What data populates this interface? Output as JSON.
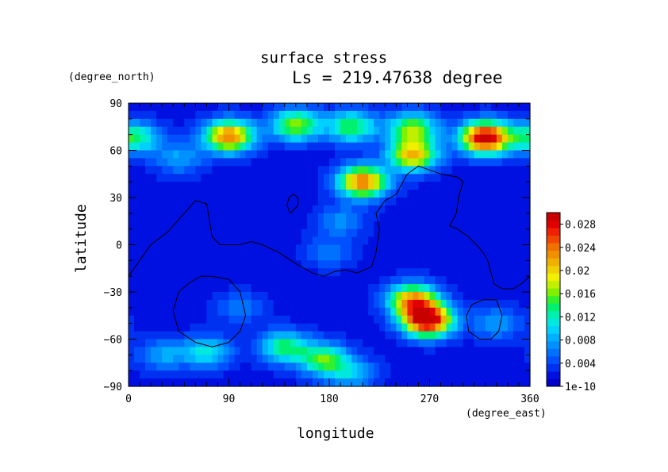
{
  "chart_data": {
    "type": "heatmap",
    "title": "surface stress",
    "subtitle": "Ls = 219.47638 degree",
    "xlabel": "longitude",
    "ylabel": "latitude",
    "x_unit": "(degree_east)",
    "y_unit": "(degree_north)",
    "xlim": [
      0,
      360
    ],
    "ylim": [
      -90,
      90
    ],
    "xticks": [
      "0",
      "90",
      "180",
      "270",
      "360"
    ],
    "yticks": [
      "90",
      "60",
      "30",
      "0",
      "−30",
      "−60",
      "−90"
    ],
    "colorbar": {
      "ticks": [
        "1e-10",
        "0.004",
        "0.008",
        "0.012",
        "0.016",
        "0.02",
        "0.024",
        "0.028"
      ],
      "range": [
        0,
        0.03
      ],
      "colors": [
        "#0000c8",
        "#0010e0",
        "#0030f0",
        "#0050ff",
        "#0070ff",
        "#0090ff",
        "#00b0ff",
        "#00d0ff",
        "#00e8e0",
        "#00f0b0",
        "#00f070",
        "#30f030",
        "#80f000",
        "#c0f000",
        "#f0f000",
        "#f0d000",
        "#f0b000",
        "#f09000",
        "#f07000",
        "#f04800",
        "#f02000",
        "#e00000",
        "#c80000"
      ]
    },
    "background_value": 0.002,
    "field_peaks": [
      {
        "lon": 90,
        "lat": 69,
        "value": 0.024
      },
      {
        "lon": 150,
        "lat": 76,
        "value": 0.017
      },
      {
        "lon": 200,
        "lat": 75,
        "value": 0.015
      },
      {
        "lon": 255,
        "lat": 74,
        "value": 0.016
      },
      {
        "lon": 320,
        "lat": 68,
        "value": 0.031
      },
      {
        "lon": 5,
        "lat": 68,
        "value": 0.014
      },
      {
        "lon": 45,
        "lat": 55,
        "value": 0.008
      },
      {
        "lon": 210,
        "lat": 40,
        "value": 0.024
      },
      {
        "lon": 255,
        "lat": 57,
        "value": 0.021
      },
      {
        "lon": 190,
        "lat": 15,
        "value": 0.007
      },
      {
        "lon": 180,
        "lat": -5,
        "value": 0.006
      },
      {
        "lon": 255,
        "lat": -35,
        "value": 0.022
      },
      {
        "lon": 268,
        "lat": -48,
        "value": 0.031
      },
      {
        "lon": 140,
        "lat": -65,
        "value": 0.014
      },
      {
        "lon": 175,
        "lat": -73,
        "value": 0.015
      },
      {
        "lon": 70,
        "lat": -68,
        "value": 0.011
      },
      {
        "lon": 30,
        "lat": -70,
        "value": 0.008
      },
      {
        "lon": 200,
        "lat": -82,
        "value": 0.009
      },
      {
        "lon": 330,
        "lat": -50,
        "value": 0.008
      },
      {
        "lon": 100,
        "lat": -40,
        "value": 0.006
      }
    ],
    "coastlines": [
      [
        [
          0,
          -20
        ],
        [
          10,
          -10
        ],
        [
          20,
          0
        ],
        [
          35,
          8
        ],
        [
          50,
          20
        ],
        [
          60,
          28
        ],
        [
          70,
          26
        ],
        [
          72,
          18
        ],
        [
          75,
          5
        ],
        [
          82,
          0
        ],
        [
          100,
          0
        ],
        [
          110,
          2
        ],
        [
          120,
          0
        ],
        [
          135,
          -5
        ],
        [
          150,
          -12
        ],
        [
          165,
          -18
        ],
        [
          175,
          -20
        ],
        [
          185,
          -17
        ],
        [
          195,
          -16
        ],
        [
          205,
          -18
        ],
        [
          218,
          -14
        ],
        [
          222,
          -5
        ],
        [
          225,
          10
        ],
        [
          222,
          20
        ],
        [
          230,
          28
        ],
        [
          240,
          32
        ],
        [
          250,
          45
        ],
        [
          260,
          50
        ],
        [
          280,
          45
        ],
        [
          295,
          43
        ],
        [
          300,
          40
        ],
        [
          296,
          30
        ],
        [
          294,
          20
        ],
        [
          288,
          12
        ],
        [
          295,
          10
        ],
        [
          305,
          5
        ],
        [
          312,
          0
        ],
        [
          318,
          -5
        ],
        [
          322,
          -10
        ],
        [
          328,
          -25
        ],
        [
          335,
          -28
        ],
        [
          345,
          -28
        ],
        [
          352,
          -25
        ],
        [
          360,
          -20
        ]
      ],
      [
        [
          148,
          22
        ],
        [
          152,
          25
        ],
        [
          152,
          30
        ],
        [
          148,
          32
        ],
        [
          144,
          30
        ],
        [
          142,
          25
        ],
        [
          145,
          20
        ],
        [
          148,
          22
        ]
      ],
      [
        [
          75,
          -20
        ],
        [
          90,
          -22
        ],
        [
          100,
          -30
        ],
        [
          105,
          -45
        ],
        [
          100,
          -55
        ],
        [
          90,
          -62
        ],
        [
          75,
          -65
        ],
        [
          60,
          -62
        ],
        [
          45,
          -55
        ],
        [
          40,
          -42
        ],
        [
          45,
          -30
        ],
        [
          55,
          -24
        ],
        [
          65,
          -20
        ],
        [
          75,
          -20
        ]
      ],
      [
        [
          330,
          -35
        ],
        [
          335,
          -45
        ],
        [
          332,
          -55
        ],
        [
          325,
          -60
        ],
        [
          315,
          -60
        ],
        [
          305,
          -55
        ],
        [
          303,
          -45
        ],
        [
          308,
          -38
        ],
        [
          318,
          -35
        ],
        [
          330,
          -35
        ]
      ]
    ]
  }
}
